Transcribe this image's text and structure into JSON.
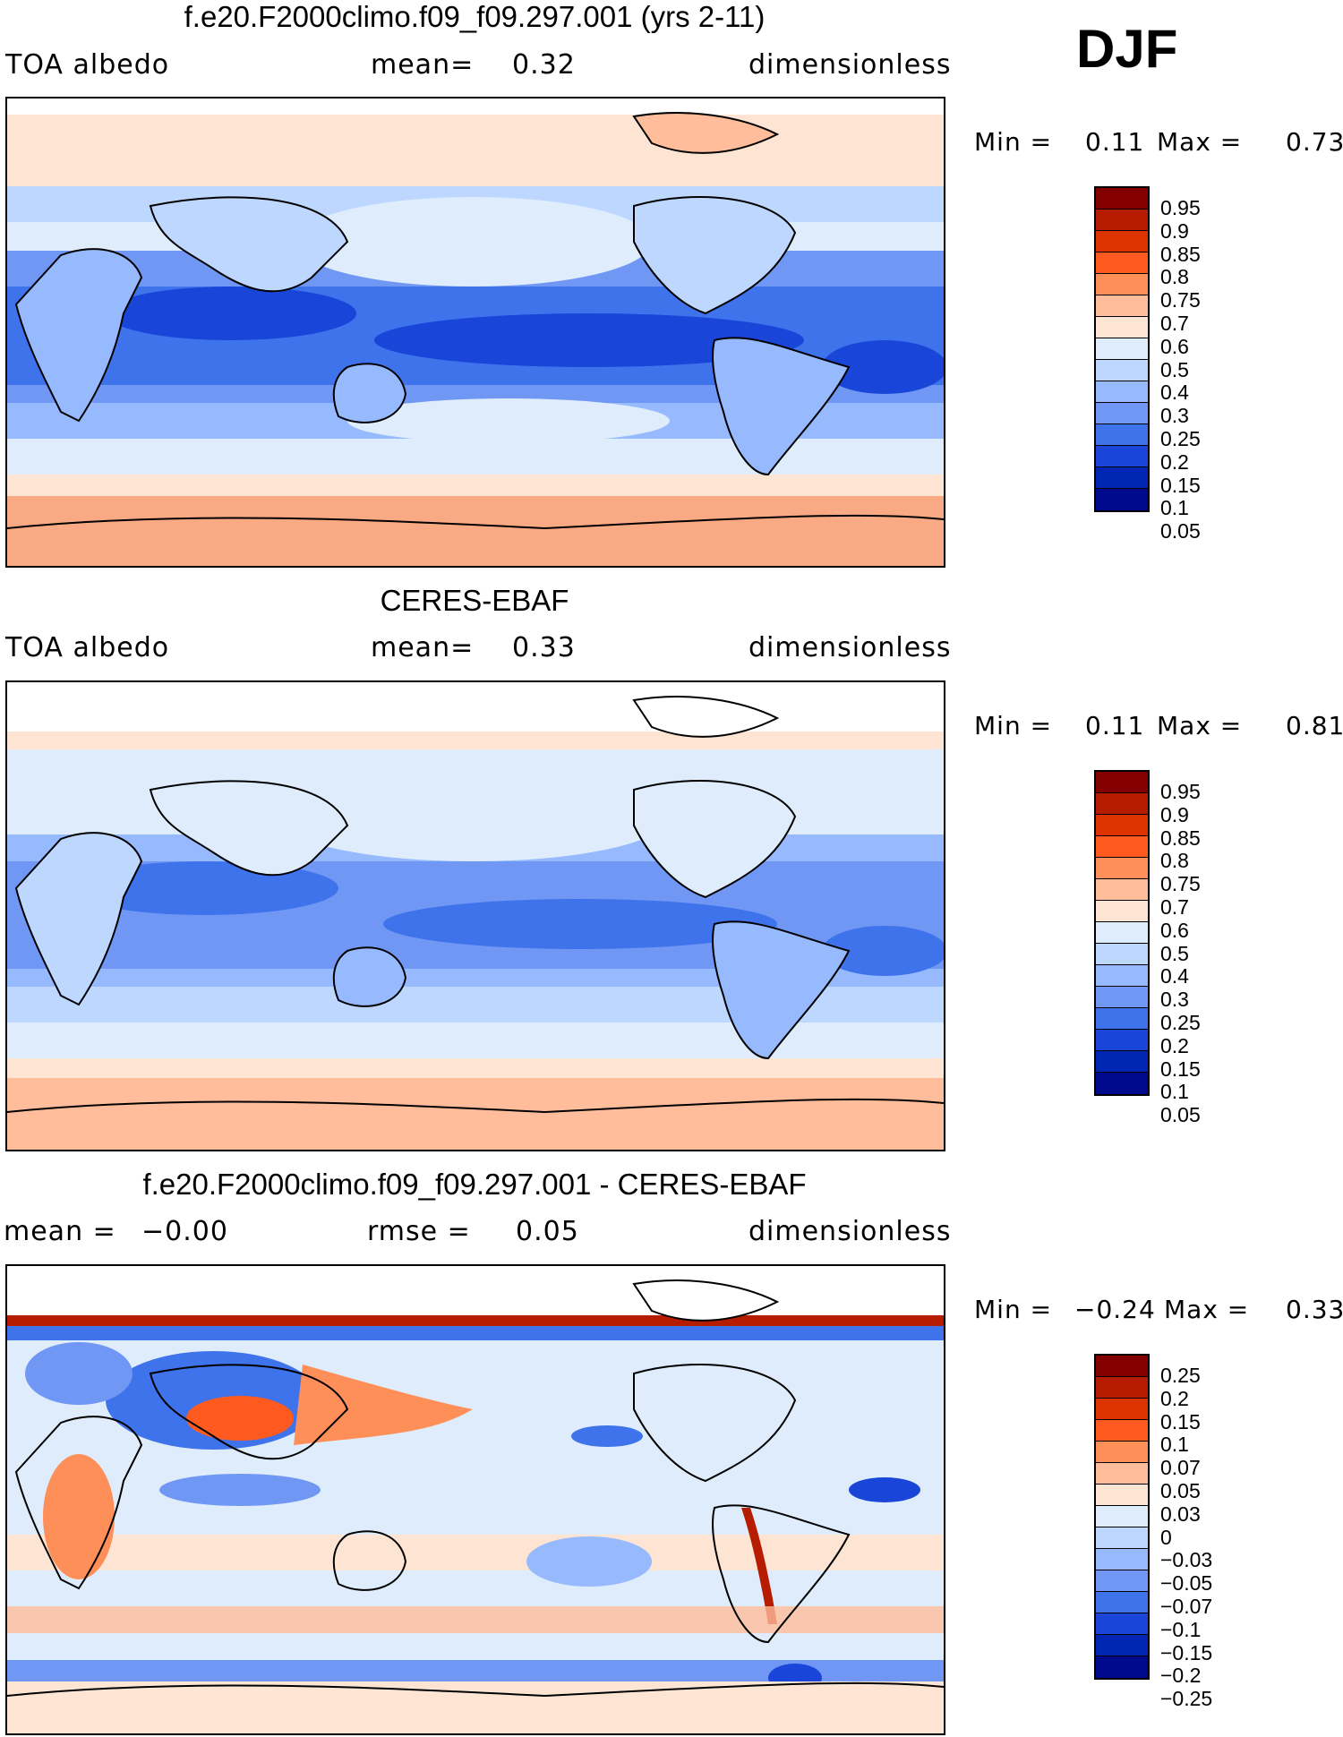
{
  "season": "DJF",
  "colors": {
    "land_outline": "#000000",
    "blue_dark": "#000a8c",
    "red_dark": "#840000"
  },
  "panels": [
    {
      "title": "f.e20.F2000climo.f09_f09.297.001 (yrs 2-11)",
      "left_label": "TOA albedo",
      "center_label": "mean=",
      "center_value": "0.32",
      "right_label": "dimensionless",
      "min_label": "Min =",
      "min_value": "0.11",
      "max_label": "Max =",
      "max_value": "0.73",
      "colorbar_labels": [
        "0.95",
        "0.9",
        "0.85",
        "0.8",
        "0.75",
        "0.7",
        "0.6",
        "0.5",
        "0.4",
        "0.3",
        "0.25",
        "0.2",
        "0.15",
        "0.1",
        "0.05"
      ]
    },
    {
      "title": "CERES-EBAF",
      "left_label": "TOA albedo",
      "center_label": "mean=",
      "center_value": "0.33",
      "right_label": "dimensionless",
      "min_label": "Min =",
      "min_value": "0.11",
      "max_label": "Max =",
      "max_value": "0.81",
      "colorbar_labels": [
        "0.95",
        "0.9",
        "0.85",
        "0.8",
        "0.75",
        "0.7",
        "0.6",
        "0.5",
        "0.4",
        "0.3",
        "0.25",
        "0.2",
        "0.15",
        "0.1",
        "0.05"
      ]
    },
    {
      "title": "f.e20.F2000climo.f09_f09.297.001 - CERES-EBAF",
      "left_label": "mean =",
      "left_value": "−0.00",
      "center_label": "rmse =",
      "center_value": "0.05",
      "right_label": "dimensionless",
      "min_label": "Min =",
      "min_value": "−0.24",
      "max_label": "Max =",
      "max_value": "0.33",
      "colorbar_labels": [
        "0.25",
        "0.2",
        "0.15",
        "0.1",
        "0.07",
        "0.05",
        "0.03",
        "0",
        "−0.03",
        "−0.05",
        "−0.07",
        "−0.1",
        "−0.15",
        "−0.2",
        "−0.25"
      ]
    }
  ],
  "colorbar_colors": [
    "#840000",
    "#b51c00",
    "#dd3300",
    "#ff5a20",
    "#ff8f58",
    "#ffbd9b",
    "#fde4d3",
    "#deecfb",
    "#bdd7ff",
    "#97baff",
    "#7197f4",
    "#3f73ec",
    "#1946d8",
    "#0027b4",
    "#000a8c"
  ]
}
